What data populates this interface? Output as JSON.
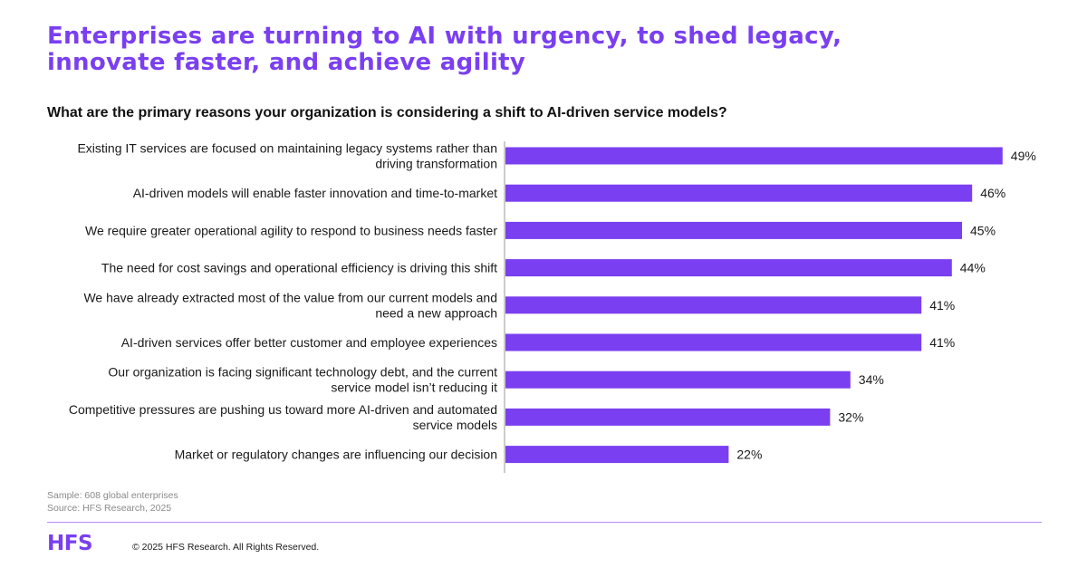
{
  "header": {
    "title_line1": "Enterprises are turning to AI with urgency, to shed legacy,",
    "title_line2": "innovate faster, and achieve agility",
    "question": "What are the primary reasons your organization is considering a shift to AI-driven service models?"
  },
  "chart_data": {
    "type": "bar",
    "orientation": "horizontal",
    "bar_color": "#7a3ff0",
    "value_suffix": "%",
    "xlim": [
      0,
      100
    ],
    "grid": false,
    "categories": [
      [
        "Existing IT services are focused on maintaining legacy systems rather than",
        "driving transformation"
      ],
      [
        "AI-driven models will enable faster innovation and time-to-market"
      ],
      [
        "We require greater operational agility to respond to business needs faster"
      ],
      [
        "The need for cost savings and operational efficiency is driving this shift"
      ],
      [
        "We have already extracted most of the value from our current models and",
        "need a new approach"
      ],
      [
        "AI-driven services offer better customer and employee experiences"
      ],
      [
        "Our organization is facing significant technology debt, and the current",
        "service model isn’t reducing it"
      ],
      [
        "Competitive pressures are pushing us toward more AI-driven and automated",
        "service models"
      ],
      [
        "Market or regulatory changes are influencing our decision"
      ]
    ],
    "values": [
      49,
      46,
      45,
      44,
      41,
      41,
      34,
      32,
      22
    ]
  },
  "footer": {
    "sample": "Sample: 608 global enterprises",
    "source": "Source: HFS Research, 2025",
    "logo": "HFS",
    "copyright": "© 2025 HFS Research. All Rights Reserved.",
    "accent": "#7a3ff0",
    "rule_color": "#b98cf7"
  }
}
